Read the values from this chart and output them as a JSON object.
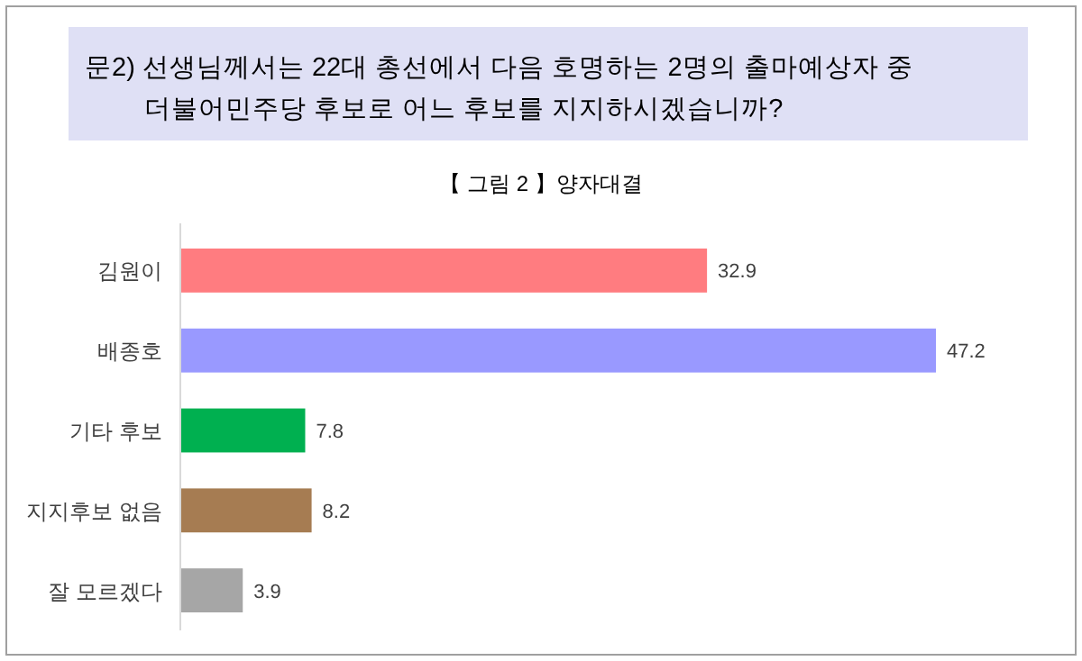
{
  "chart_data": {
    "type": "bar",
    "orientation": "horizontal",
    "title": "문2) 선생님께서는 22대 총선에서 다음 호명하는 2명의 출마예상자 중\n더불어민주당 후보로 어느 후보를 지지하시겠습니까?",
    "subtitle": "【 그림 2 】양자대결",
    "categories": [
      "김원이",
      "배종호",
      "기타 후보",
      "지지후보 없음",
      "잘 모르겠다"
    ],
    "values": [
      32.9,
      47.2,
      7.8,
      8.2,
      3.9
    ],
    "colors": [
      "#ff7c80",
      "#9999ff",
      "#00b050",
      "#a67c52",
      "#a6a6a6"
    ],
    "data_labels": true
  }
}
